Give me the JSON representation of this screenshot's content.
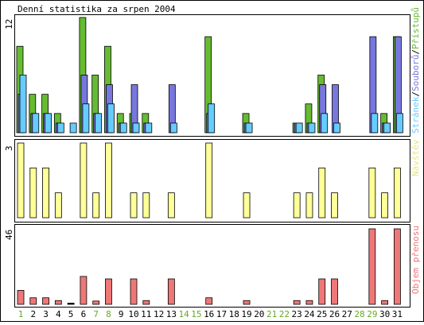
{
  "title": "Denní statistika za srpen 2004",
  "colors": {
    "background": "#ffffff",
    "border": "#000000",
    "pristupy": "#66bb33",
    "soubory": "#7777dd",
    "stranky": "#66ccff",
    "navstevy": "#ffff99",
    "objem": "#ee7777",
    "weekend_label": "#66aa22"
  },
  "chart_data": [
    {
      "type": "bar",
      "name": "hits",
      "ymax_label": "12",
      "ylim": [
        0,
        12
      ],
      "categories": [
        "1",
        "2",
        "3",
        "4",
        "5",
        "6",
        "7",
        "8",
        "9",
        "10",
        "11",
        "12",
        "13",
        "14",
        "15",
        "16",
        "17",
        "18",
        "19",
        "20",
        "21",
        "22",
        "23",
        "24",
        "25",
        "26",
        "27",
        "28",
        "29",
        "30",
        "31"
      ],
      "series": [
        {
          "name": "Přístupů",
          "values": [
            9,
            4,
            4,
            2,
            0,
            12,
            6,
            9,
            2,
            2,
            2,
            0,
            0,
            0,
            0,
            10,
            0,
            0,
            2,
            0,
            0,
            0,
            1,
            3,
            6,
            0,
            0,
            0,
            0,
            2,
            10
          ]
        },
        {
          "name": "Souborů",
          "values": [
            4,
            2,
            2,
            1,
            0,
            6,
            2,
            5,
            1,
            5,
            1,
            0,
            5,
            0,
            0,
            2,
            0,
            0,
            1,
            0,
            0,
            0,
            1,
            1,
            5,
            5,
            0,
            0,
            10,
            1,
            10
          ]
        },
        {
          "name": "Stránek",
          "values": [
            6,
            2,
            2,
            1,
            1,
            3,
            2,
            3,
            1,
            1,
            1,
            0,
            1,
            0,
            0,
            3,
            0,
            0,
            1,
            0,
            0,
            0,
            1,
            1,
            2,
            1,
            0,
            0,
            2,
            1,
            2
          ]
        }
      ],
      "legend": [
        "Stránek",
        "Souborů",
        "Přístupů"
      ]
    },
    {
      "type": "bar",
      "name": "visits",
      "ymax_label": "3",
      "ylim": [
        0,
        3
      ],
      "categories": [
        "1",
        "2",
        "3",
        "4",
        "5",
        "6",
        "7",
        "8",
        "9",
        "10",
        "11",
        "12",
        "13",
        "14",
        "15",
        "16",
        "17",
        "18",
        "19",
        "20",
        "21",
        "22",
        "23",
        "24",
        "25",
        "26",
        "27",
        "28",
        "29",
        "30",
        "31"
      ],
      "series": [
        {
          "name": "Návštěv",
          "values": [
            3,
            2,
            2,
            1,
            0,
            3,
            1,
            3,
            0,
            1,
            1,
            0,
            1,
            0,
            0,
            3,
            0,
            0,
            1,
            0,
            0,
            0,
            1,
            1,
            2,
            1,
            0,
            0,
            2,
            1,
            2
          ]
        }
      ]
    },
    {
      "type": "bar",
      "name": "traffic",
      "ymax_label": "46",
      "ylim": [
        0,
        46
      ],
      "categories": [
        "1",
        "2",
        "3",
        "4",
        "5",
        "6",
        "7",
        "8",
        "9",
        "10",
        "11",
        "12",
        "13",
        "14",
        "15",
        "16",
        "17",
        "18",
        "19",
        "20",
        "21",
        "22",
        "23",
        "24",
        "25",
        "26",
        "27",
        "28",
        "29",
        "30",
        "31"
      ],
      "series": [
        {
          "name": "Objem přenosu",
          "values": [
            8.5,
            4,
            4,
            2.3,
            0.4,
            17,
            2,
            15.5,
            0,
            15.5,
            2.3,
            0,
            15.5,
            0,
            0,
            4,
            0,
            0,
            2.3,
            0,
            0,
            0,
            2.3,
            2.3,
            15.5,
            15.5,
            0,
            0,
            46,
            2.3,
            46
          ]
        }
      ]
    }
  ],
  "x_axis": {
    "labels": [
      "1",
      "2",
      "3",
      "4",
      "5",
      "6",
      "7",
      "8",
      "9",
      "10",
      "11",
      "12",
      "13",
      "14",
      "15",
      "16",
      "17",
      "18",
      "19",
      "20",
      "21",
      "22",
      "23",
      "24",
      "25",
      "26",
      "27",
      "28",
      "29",
      "30",
      "31"
    ],
    "weekend_days": [
      1,
      7,
      8,
      14,
      15,
      21,
      22,
      28,
      29
    ]
  }
}
